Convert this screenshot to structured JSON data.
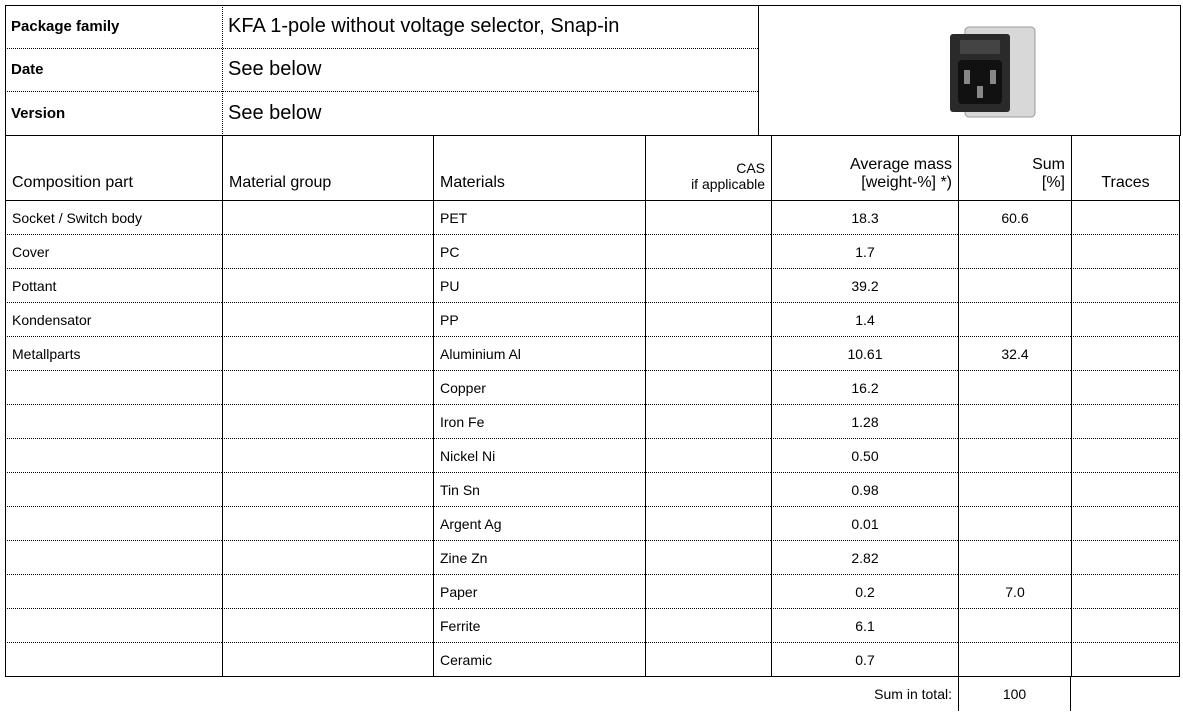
{
  "header": {
    "package_family_label": "Package family",
    "package_family": "KFA  1-pole without voltage selector, Snap-in",
    "date_label": "Date",
    "date": "See below",
    "version_label": "Version",
    "version": "See below"
  },
  "table": {
    "columns": [
      "Composition part",
      "Material group",
      "Materials",
      {
        "line1": "CAS",
        "line2": "if applicable"
      },
      {
        "line1": "Average mass",
        "line2": "[weight-%] *)"
      },
      {
        "line1": "Sum",
        "line2": "[%]"
      },
      "Traces"
    ],
    "rows": [
      [
        "Socket  /  Switch body",
        null,
        "PET",
        null,
        "18.3",
        "60.6",
        null
      ],
      [
        "Cover",
        null,
        "PC",
        null,
        "1.7",
        null,
        null
      ],
      [
        "Pottant",
        null,
        "PU",
        null,
        "39.2",
        null,
        null
      ],
      [
        "Kondensator",
        null,
        "PP",
        null,
        "1.4",
        null,
        null
      ],
      [
        "Metallparts",
        null,
        "Aluminium Al",
        null,
        "10.61",
        "32.4",
        null
      ],
      [
        null,
        null,
        "Copper",
        null,
        "16.2",
        null,
        null
      ],
      [
        null,
        null,
        "Iron Fe",
        null,
        "1.28",
        null,
        null
      ],
      [
        null,
        null,
        "Nickel Ni",
        null,
        "0.50",
        null,
        null
      ],
      [
        null,
        null,
        "Tin Sn",
        null,
        "0.98",
        null,
        null
      ],
      [
        null,
        null,
        "Argent Ag",
        null,
        "0.01",
        null,
        null
      ],
      [
        null,
        null,
        "Zine Zn",
        null,
        "2.82",
        null,
        null
      ],
      [
        null,
        null,
        "Paper",
        null,
        "0.2",
        "7.0",
        null
      ],
      [
        null,
        null,
        "Ferrite",
        null,
        "6.1",
        null,
        null
      ],
      [
        null,
        null,
        "Ceramic",
        null,
        "0.7",
        null,
        null
      ]
    ]
  },
  "footer": {
    "label": "Sum in total:",
    "value": "100"
  }
}
